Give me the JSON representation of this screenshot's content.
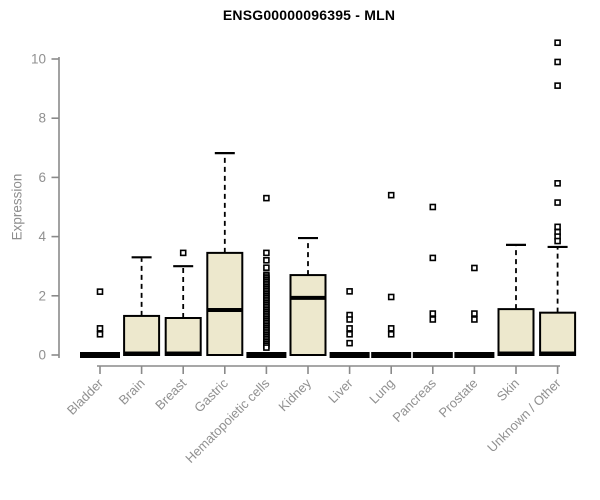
{
  "chart_data": {
    "type": "boxplot",
    "title": "ENSG00000096395 - MLN",
    "ylabel": "Expression",
    "xlabel": "",
    "ylim": [
      0,
      10
    ],
    "yticks": [
      0,
      2,
      4,
      6,
      8,
      10
    ],
    "grid": false,
    "legend": "none",
    "categories": [
      "Bladder",
      "Brain",
      "Breast",
      "Gastric",
      "Hematopoietic cells",
      "Kidney",
      "Liver",
      "Lung",
      "Pancreas",
      "Prostate",
      "Skin",
      "Unknown / Other"
    ],
    "series": [
      {
        "name": "Bladder",
        "flat": true,
        "q1": 0,
        "median": 0,
        "q3": 0,
        "whisker_low": 0,
        "whisker_high": 0,
        "outliers": [
          2.14,
          0.9,
          0.7
        ]
      },
      {
        "name": "Brain",
        "flat": false,
        "q1": 0,
        "median": 0.05,
        "q3": 1.32,
        "whisker_low": 0,
        "whisker_high": 3.3,
        "outliers": []
      },
      {
        "name": "Breast",
        "flat": false,
        "q1": 0,
        "median": 0.05,
        "q3": 1.25,
        "whisker_low": 0,
        "whisker_high": 3.0,
        "outliers": [
          3.45
        ]
      },
      {
        "name": "Gastric",
        "flat": false,
        "q1": 0,
        "median": 1.52,
        "q3": 3.45,
        "whisker_low": 0,
        "whisker_high": 6.82,
        "outliers": []
      },
      {
        "name": "Hematopoietic cells",
        "flat": true,
        "q1": 0,
        "median": 0,
        "q3": 0,
        "whisker_low": 0,
        "whisker_high": 0,
        "outliers": [
          5.3,
          3.45,
          3.2,
          2.95,
          2.71,
          2.65,
          2.59,
          2.53,
          2.47,
          2.41,
          2.35,
          2.29,
          2.23,
          2.17,
          2.11,
          2.05,
          1.99,
          1.93,
          1.87,
          1.81,
          1.75,
          1.69,
          1.63,
          1.57,
          1.51,
          1.45,
          1.39,
          1.33,
          1.27,
          1.21,
          1.15,
          1.09,
          1.03,
          0.97,
          0.91,
          0.85,
          0.79,
          0.73,
          0.67,
          0.61,
          0.55,
          0.49,
          0.43,
          0.37,
          0.31,
          0.25
        ]
      },
      {
        "name": "Kidney",
        "flat": false,
        "q1": 0,
        "median": 1.93,
        "q3": 2.7,
        "whisker_low": 0,
        "whisker_high": 3.95,
        "outliers": []
      },
      {
        "name": "Liver",
        "flat": true,
        "q1": 0,
        "median": 0,
        "q3": 0,
        "whisker_low": 0,
        "whisker_high": 0,
        "outliers": [
          2.15,
          1.35,
          1.2,
          0.9,
          0.7,
          0.4
        ]
      },
      {
        "name": "Lung",
        "flat": true,
        "q1": 0,
        "median": 0,
        "q3": 0,
        "whisker_low": 0,
        "whisker_high": 0,
        "outliers": [
          5.4,
          1.96,
          0.9,
          0.7
        ]
      },
      {
        "name": "Pancreas",
        "flat": true,
        "q1": 0,
        "median": 0,
        "q3": 0,
        "whisker_low": 0,
        "whisker_high": 0,
        "outliers": [
          5.0,
          3.28,
          1.4,
          1.2
        ]
      },
      {
        "name": "Prostate",
        "flat": true,
        "q1": 0,
        "median": 0,
        "q3": 0,
        "whisker_low": 0,
        "whisker_high": 0,
        "outliers": [
          2.94,
          1.4,
          1.2
        ]
      },
      {
        "name": "Skin",
        "flat": false,
        "q1": 0,
        "median": 0.05,
        "q3": 1.55,
        "whisker_low": 0,
        "whisker_high": 3.72,
        "outliers": []
      },
      {
        "name": "Unknown / Other",
        "flat": false,
        "q1": 0,
        "median": 0.05,
        "q3": 1.43,
        "whisker_low": 0,
        "whisker_high": 3.65,
        "outliers": [
          10.55,
          9.9,
          9.1,
          5.8,
          5.15,
          4.33,
          4.15,
          4.0,
          3.85
        ]
      }
    ],
    "colors": {
      "box_fill": "#EDE8CD",
      "box_stroke": "#000000",
      "median": "#000000",
      "whisker": "#000000",
      "outlier_stroke": "#000000",
      "outlier_fill": "#FFFFFF",
      "axis": "#8A8A8A",
      "tick_label": "#909090",
      "title_color": "#000000",
      "background": "#FFFFFF"
    }
  }
}
